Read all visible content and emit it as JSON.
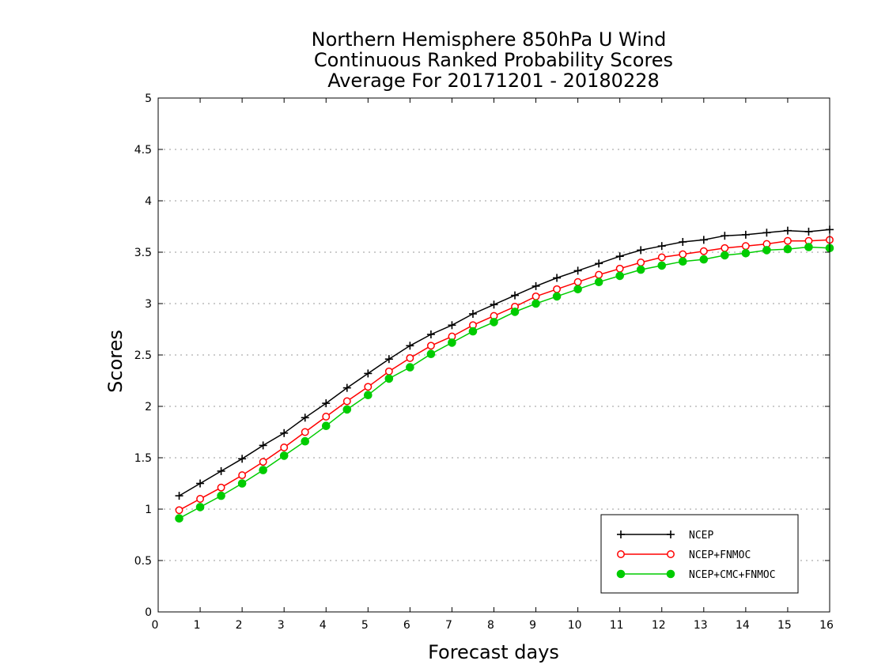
{
  "chart_data": {
    "type": "line",
    "title": [
      "Northern Hemisphere 850hPa U Wind",
      "Continuous Ranked Probability Scores",
      "Average For 20171201 - 20180228"
    ],
    "xlabel": "Forecast days",
    "ylabel": "Scores",
    "xlim": [
      0,
      16
    ],
    "ylim": [
      0,
      5
    ],
    "xticks": [
      "0",
      "1",
      "2",
      "3",
      "4",
      "5",
      "6",
      "7",
      "8",
      "9",
      "10",
      "11",
      "12",
      "13",
      "14",
      "15",
      "16"
    ],
    "yticks": [
      "0",
      "0.5",
      "1",
      "1.5",
      "2",
      "2.5",
      "3",
      "3.5",
      "4",
      "4.5",
      "5"
    ],
    "grid": true,
    "legend_position": "bottom-right",
    "x": [
      0.5,
      1,
      1.5,
      2,
      2.5,
      3,
      3.5,
      4,
      4.5,
      5,
      5.5,
      6,
      6.5,
      7,
      7.5,
      8,
      8.5,
      9,
      9.5,
      10,
      10.5,
      11,
      11.5,
      12,
      12.5,
      13,
      13.5,
      14,
      14.5,
      15,
      15.5,
      16
    ],
    "series": [
      {
        "name": "NCEP",
        "color": "#000000",
        "marker": "plus",
        "values": [
          1.13,
          1.25,
          1.37,
          1.49,
          1.62,
          1.74,
          1.89,
          2.03,
          2.18,
          2.32,
          2.46,
          2.59,
          2.7,
          2.79,
          2.9,
          2.99,
          3.08,
          3.17,
          3.25,
          3.32,
          3.39,
          3.46,
          3.52,
          3.56,
          3.6,
          3.62,
          3.66,
          3.67,
          3.69,
          3.71,
          3.7,
          3.72
        ]
      },
      {
        "name": "NCEP+FNMOC",
        "color": "#ff0000",
        "marker": "open-circle",
        "values": [
          0.99,
          1.1,
          1.21,
          1.33,
          1.46,
          1.6,
          1.75,
          1.9,
          2.05,
          2.19,
          2.34,
          2.47,
          2.59,
          2.68,
          2.79,
          2.88,
          2.97,
          3.07,
          3.14,
          3.21,
          3.28,
          3.34,
          3.4,
          3.45,
          3.48,
          3.51,
          3.54,
          3.56,
          3.58,
          3.61,
          3.61,
          3.62
        ]
      },
      {
        "name": "NCEP+CMC+FNMOC",
        "color": "#00cc00",
        "marker": "filled-circle",
        "values": [
          0.91,
          1.02,
          1.13,
          1.25,
          1.38,
          1.52,
          1.66,
          1.81,
          1.97,
          2.11,
          2.27,
          2.38,
          2.51,
          2.62,
          2.73,
          2.82,
          2.92,
          3.0,
          3.07,
          3.14,
          3.21,
          3.27,
          3.33,
          3.37,
          3.41,
          3.43,
          3.47,
          3.49,
          3.52,
          3.53,
          3.55,
          3.54
        ]
      }
    ]
  }
}
